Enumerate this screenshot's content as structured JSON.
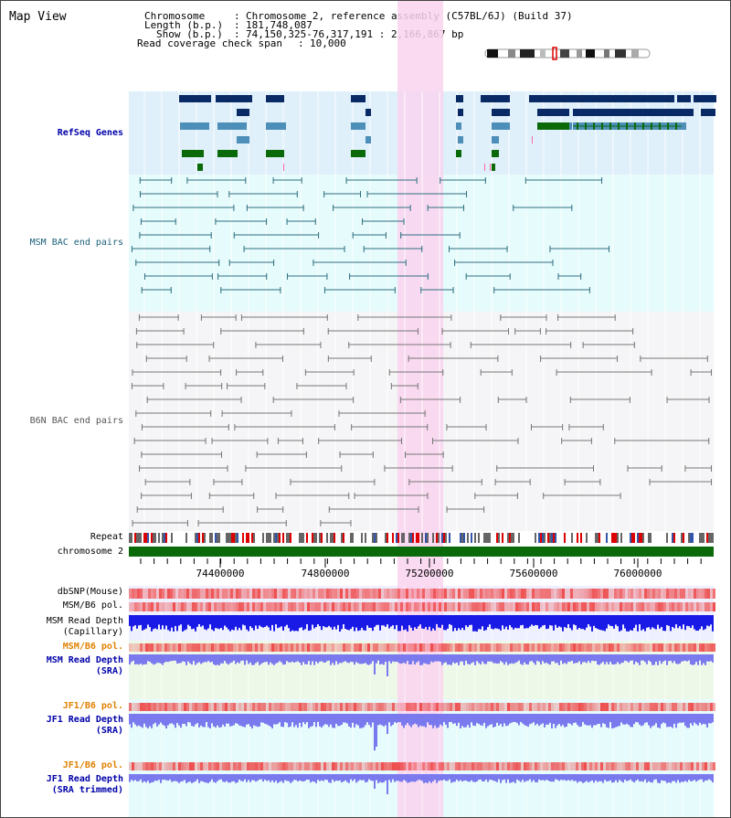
{
  "app": {
    "title": "Map View"
  },
  "header": {
    "chromosome_key": "Chromosome",
    "chromosome_value": "Chromosome 2, reference assembly (C57BL/6J) (Build 37)",
    "length_key": "Length (b.p.)",
    "length_value": "181,748,087",
    "show_key": "Show (b.p.)",
    "show_value": "74,150,325-76,317,191 : 2,166,867 bp",
    "coverage_key": "Read coverage check span",
    "coverage_value": "10,000"
  },
  "tracks": {
    "refseq": "RefSeq Genes",
    "msm_bac": "MSM BAC end pairs",
    "b6n_bac": "B6N BAC end pairs",
    "repeat": "Repeat",
    "chromosome": "chromosome 2",
    "dbsnp": "dbSNP(Mouse)",
    "msm_b6_pol": "MSM/B6 pol.",
    "msm_depth_cap_1": "MSM Read Depth",
    "msm_depth_cap_2": "(Capillary)",
    "msm_b6_pol_2": "MSM/B6 pol.",
    "msm_depth_sra_1": "MSM Read Depth",
    "msm_depth_sra_2": "(SRA)",
    "jf1_b6_pol": "JF1/B6 pol.",
    "jf1_depth_sra_1": "JF1 Read Depth",
    "jf1_depth_sra_2": "(SRA)",
    "jf1_b6_pol_2": "JF1/B6 pol.",
    "jf1_depth_trim_1": "JF1 Read Depth",
    "jf1_depth_trim_2": "(SRA trimmed)"
  },
  "axis": {
    "ticks": [
      "74400000",
      "74800000",
      "75200000",
      "75600000",
      "76000000"
    ]
  },
  "colors": {
    "refseq_bg": "#dff0fb",
    "bac_bg": "#e6fbfb",
    "gray_bg": "#f5f5f7",
    "highlight": "#f9d4ef",
    "gene_navy": "#0a2a66",
    "gene_steel": "#4d8fb8",
    "gene_green": "#0a6a0a",
    "msm_line": "#2f6f80",
    "b6n_line": "#777777",
    "chromosome_bar": "#0a6a0a",
    "depth_capillary": "#1a1ae6",
    "depth_sra": "#7a7aee",
    "snp_red": "#ee4444"
  }
}
